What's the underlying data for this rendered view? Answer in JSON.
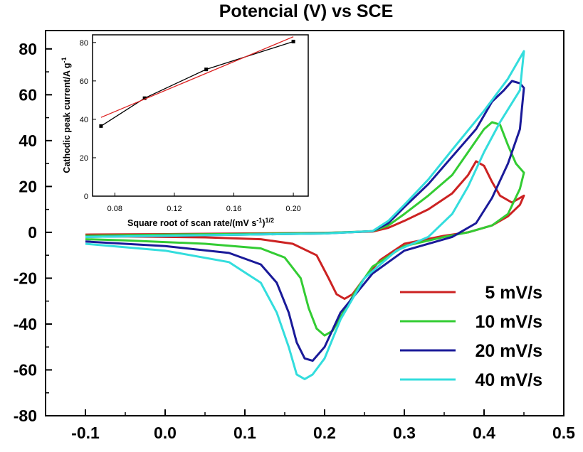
{
  "chart_data": [
    {
      "type": "line",
      "title": "Potencial (V) vs SCE",
      "xlabel": "",
      "ylabel": "",
      "xlim": [
        -0.15,
        0.5
      ],
      "ylim": [
        -80,
        88
      ],
      "x_ticks": [
        -0.1,
        0.0,
        0.1,
        0.2,
        0.3,
        0.4,
        0.5
      ],
      "x_tick_labels": [
        "-0.1",
        "0.0",
        "0.1",
        "0.2",
        "0.3",
        "0.4",
        "0.5"
      ],
      "y_ticks": [
        -80,
        -60,
        -40,
        -20,
        0,
        20,
        40,
        60,
        80
      ],
      "y_tick_labels": [
        "-80",
        "-60",
        "-40",
        "-20",
        "0",
        "20",
        "40",
        "60",
        "80"
      ],
      "grid": false,
      "legend_position": "bottom-right",
      "series": [
        {
          "name": "5 mV/s",
          "color": "#cc2222",
          "points": [
            [
              -0.1,
              -1
            ],
            [
              0.0,
              -0.8
            ],
            [
              0.1,
              -0.5
            ],
            [
              0.2,
              -0.2
            ],
            [
              0.26,
              0.3
            ],
            [
              0.28,
              2
            ],
            [
              0.3,
              5
            ],
            [
              0.33,
              10
            ],
            [
              0.36,
              17
            ],
            [
              0.38,
              25
            ],
            [
              0.39,
              31
            ],
            [
              0.4,
              29
            ],
            [
              0.41,
              22
            ],
            [
              0.42,
              16
            ],
            [
              0.435,
              13
            ],
            [
              0.45,
              16
            ],
            [
              0.445,
              12
            ],
            [
              0.43,
              7
            ],
            [
              0.41,
              3
            ],
            [
              0.38,
              0
            ],
            [
              0.35,
              -1.5
            ],
            [
              0.3,
              -5
            ],
            [
              0.27,
              -12
            ],
            [
              0.25,
              -20
            ],
            [
              0.235,
              -27
            ],
            [
              0.225,
              -29
            ],
            [
              0.215,
              -27
            ],
            [
              0.205,
              -20
            ],
            [
              0.19,
              -10
            ],
            [
              0.16,
              -5
            ],
            [
              0.12,
              -3
            ],
            [
              0.05,
              -2.2
            ],
            [
              -0.05,
              -1.8
            ],
            [
              -0.1,
              -1.5
            ]
          ]
        },
        {
          "name": "10 mV/s",
          "color": "#33cc33",
          "points": [
            [
              -0.1,
              -1.5
            ],
            [
              0.0,
              -1
            ],
            [
              0.1,
              -0.7
            ],
            [
              0.2,
              -0.3
            ],
            [
              0.26,
              0.5
            ],
            [
              0.28,
              3
            ],
            [
              0.3,
              8
            ],
            [
              0.33,
              16
            ],
            [
              0.36,
              25
            ],
            [
              0.38,
              35
            ],
            [
              0.4,
              45
            ],
            [
              0.41,
              48
            ],
            [
              0.42,
              47
            ],
            [
              0.43,
              38
            ],
            [
              0.44,
              30
            ],
            [
              0.45,
              26
            ],
            [
              0.445,
              19
            ],
            [
              0.43,
              8
            ],
            [
              0.41,
              3
            ],
            [
              0.38,
              0
            ],
            [
              0.35,
              -2
            ],
            [
              0.3,
              -6
            ],
            [
              0.26,
              -15
            ],
            [
              0.24,
              -25
            ],
            [
              0.22,
              -37
            ],
            [
              0.21,
              -43
            ],
            [
              0.2,
              -45
            ],
            [
              0.19,
              -42
            ],
            [
              0.18,
              -33
            ],
            [
              0.17,
              -20
            ],
            [
              0.15,
              -11
            ],
            [
              0.12,
              -7
            ],
            [
              0.05,
              -5
            ],
            [
              -0.05,
              -3.5
            ],
            [
              -0.1,
              -3
            ]
          ]
        },
        {
          "name": "20 mV/s",
          "color": "#1a1a99",
          "points": [
            [
              -0.1,
              -2
            ],
            [
              0.0,
              -1.5
            ],
            [
              0.1,
              -1
            ],
            [
              0.2,
              -0.5
            ],
            [
              0.26,
              0.5
            ],
            [
              0.28,
              4
            ],
            [
              0.3,
              11
            ],
            [
              0.33,
              21
            ],
            [
              0.36,
              33
            ],
            [
              0.39,
              45
            ],
            [
              0.41,
              57
            ],
            [
              0.425,
              62
            ],
            [
              0.435,
              66
            ],
            [
              0.445,
              65
            ],
            [
              0.45,
              63
            ],
            [
              0.445,
              45
            ],
            [
              0.43,
              30
            ],
            [
              0.41,
              15
            ],
            [
              0.39,
              4
            ],
            [
              0.36,
              -2
            ],
            [
              0.3,
              -8
            ],
            [
              0.26,
              -18
            ],
            [
              0.22,
              -35
            ],
            [
              0.2,
              -50
            ],
            [
              0.185,
              -56
            ],
            [
              0.175,
              -55
            ],
            [
              0.165,
              -48
            ],
            [
              0.155,
              -35
            ],
            [
              0.14,
              -22
            ],
            [
              0.12,
              -14
            ],
            [
              0.08,
              -9
            ],
            [
              0.0,
              -6
            ],
            [
              -0.1,
              -4
            ]
          ]
        },
        {
          "name": "40 mV/s",
          "color": "#33dddd",
          "points": [
            [
              -0.1,
              -2
            ],
            [
              0.0,
              -1.5
            ],
            [
              0.1,
              -1
            ],
            [
              0.2,
              -0.5
            ],
            [
              0.26,
              0.5
            ],
            [
              0.28,
              5
            ],
            [
              0.3,
              12
            ],
            [
              0.33,
              23
            ],
            [
              0.36,
              36
            ],
            [
              0.4,
              53
            ],
            [
              0.43,
              67
            ],
            [
              0.44,
              73
            ],
            [
              0.45,
              79
            ],
            [
              0.445,
              62
            ],
            [
              0.42,
              48
            ],
            [
              0.4,
              35
            ],
            [
              0.38,
              20
            ],
            [
              0.36,
              8
            ],
            [
              0.33,
              -2
            ],
            [
              0.29,
              -8
            ],
            [
              0.25,
              -20
            ],
            [
              0.22,
              -38
            ],
            [
              0.2,
              -55
            ],
            [
              0.185,
              -62
            ],
            [
              0.175,
              -64
            ],
            [
              0.165,
              -62
            ],
            [
              0.155,
              -50
            ],
            [
              0.14,
              -35
            ],
            [
              0.12,
              -22
            ],
            [
              0.08,
              -13
            ],
            [
              0.0,
              -8
            ],
            [
              -0.1,
              -5
            ]
          ]
        }
      ]
    },
    {
      "type": "line",
      "title": "",
      "xlabel": "Square root of scan rate/(mV s",
      "xlabel_sup1": "-1",
      "xlabel_mid": ")",
      "xlabel_sup2": "1/2",
      "ylabel": "Cathodic peak current/A g",
      "ylabel_sup": "-1",
      "xlim": [
        0.065,
        0.21
      ],
      "ylim": [
        0,
        84
      ],
      "x_ticks": [
        0.08,
        0.12,
        0.16,
        0.2
      ],
      "x_tick_labels": [
        "0.08",
        "0.12",
        "0.16",
        "0.20"
      ],
      "y_ticks": [
        0,
        20,
        40,
        60,
        80
      ],
      "y_tick_labels": [
        "0",
        "20",
        "40",
        "60",
        "80"
      ],
      "grid": false,
      "series": [
        {
          "color": "#000000",
          "markers": true,
          "points": [
            [
              0.0707,
              36.5
            ],
            [
              0.1,
              51
            ],
            [
              0.1414,
              66
            ],
            [
              0.2,
              80.5
            ]
          ]
        },
        {
          "color": "#dd2222",
          "markers": false,
          "points": [
            [
              0.0707,
              41
            ],
            [
              0.2,
              83
            ]
          ]
        }
      ]
    }
  ]
}
